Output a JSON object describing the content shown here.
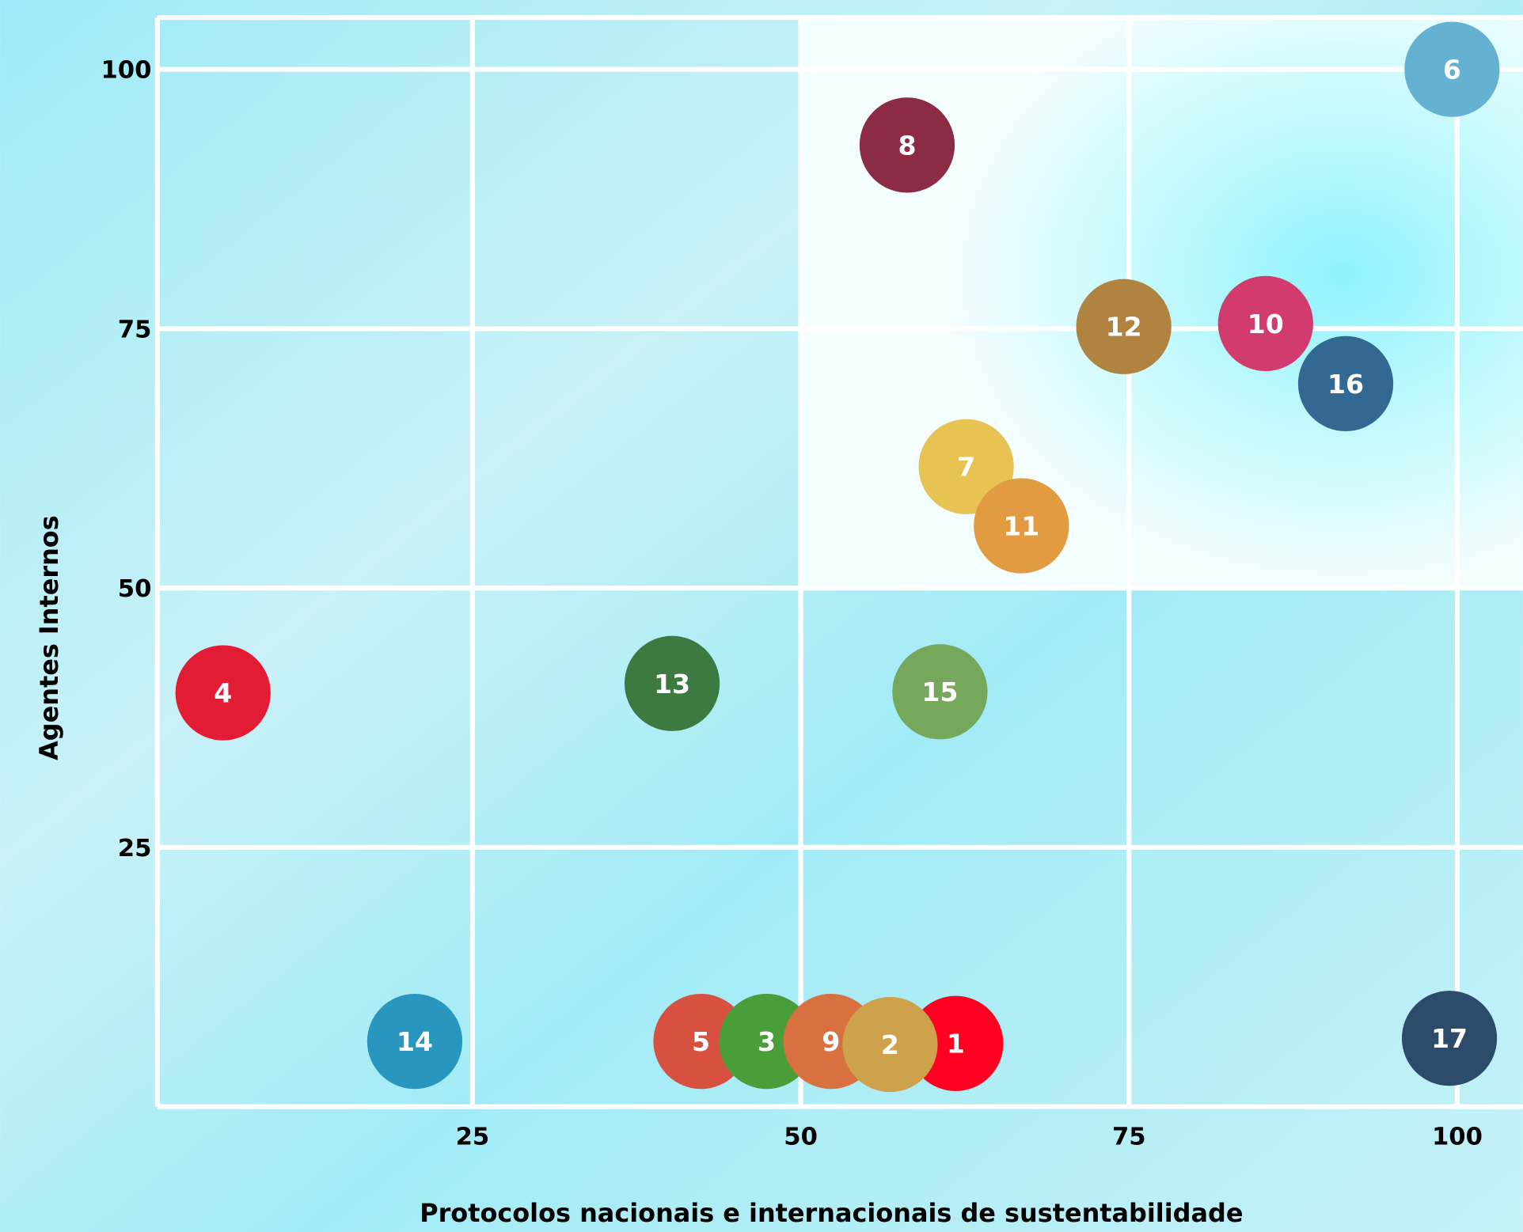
{
  "chart_data": {
    "type": "scatter",
    "xlabel": "Protocolos nacionais e internacionais de sustentabilidade",
    "ylabel": "Agentes Internos",
    "xlim": [
      1,
      105
    ],
    "ylim": [
      0,
      105
    ],
    "xticks": [
      25,
      50,
      75,
      100
    ],
    "yticks": [
      25,
      50,
      75,
      100
    ],
    "grid": true,
    "points": [
      {
        "label": "1",
        "x": 61.8,
        "y": 6.1,
        "color": "#ff0022"
      },
      {
        "label": "5",
        "x": 42.4,
        "y": 6.3,
        "color": "#d8503f"
      },
      {
        "label": "3",
        "x": 47.4,
        "y": 6.3,
        "color": "#4a9e39"
      },
      {
        "label": "9",
        "x": 52.3,
        "y": 6.3,
        "color": "#d97040"
      },
      {
        "label": "2",
        "x": 56.8,
        "y": 6,
        "color": "#cda24a"
      },
      {
        "label": "4",
        "x": 6,
        "y": 39.9,
        "color": "#e31c35"
      },
      {
        "label": "6",
        "x": 99.6,
        "y": 100,
        "color": "#64b1d1"
      },
      {
        "label": "7",
        "x": 62.6,
        "y": 61.7,
        "color": "#e7c354"
      },
      {
        "label": "11",
        "x": 66.8,
        "y": 56,
        "color": "#e29b40"
      },
      {
        "label": "8",
        "x": 58.1,
        "y": 92.7,
        "color": "#8b2b44"
      },
      {
        "label": "10",
        "x": 85.4,
        "y": 75.5,
        "color": "#d23b6e"
      },
      {
        "label": "12",
        "x": 74.6,
        "y": 75.2,
        "color": "#b08440"
      },
      {
        "label": "13",
        "x": 40.2,
        "y": 40.8,
        "color": "#3d7a42"
      },
      {
        "label": "14",
        "x": 20.6,
        "y": 6.3,
        "color": "#2896bf"
      },
      {
        "label": "15",
        "x": 60.6,
        "y": 40,
        "color": "#75a85a"
      },
      {
        "label": "16",
        "x": 91.5,
        "y": 69.7,
        "color": "#326891"
      },
      {
        "label": "17",
        "x": 99.4,
        "y": 6.6,
        "color": "#2c4a6a"
      }
    ]
  }
}
